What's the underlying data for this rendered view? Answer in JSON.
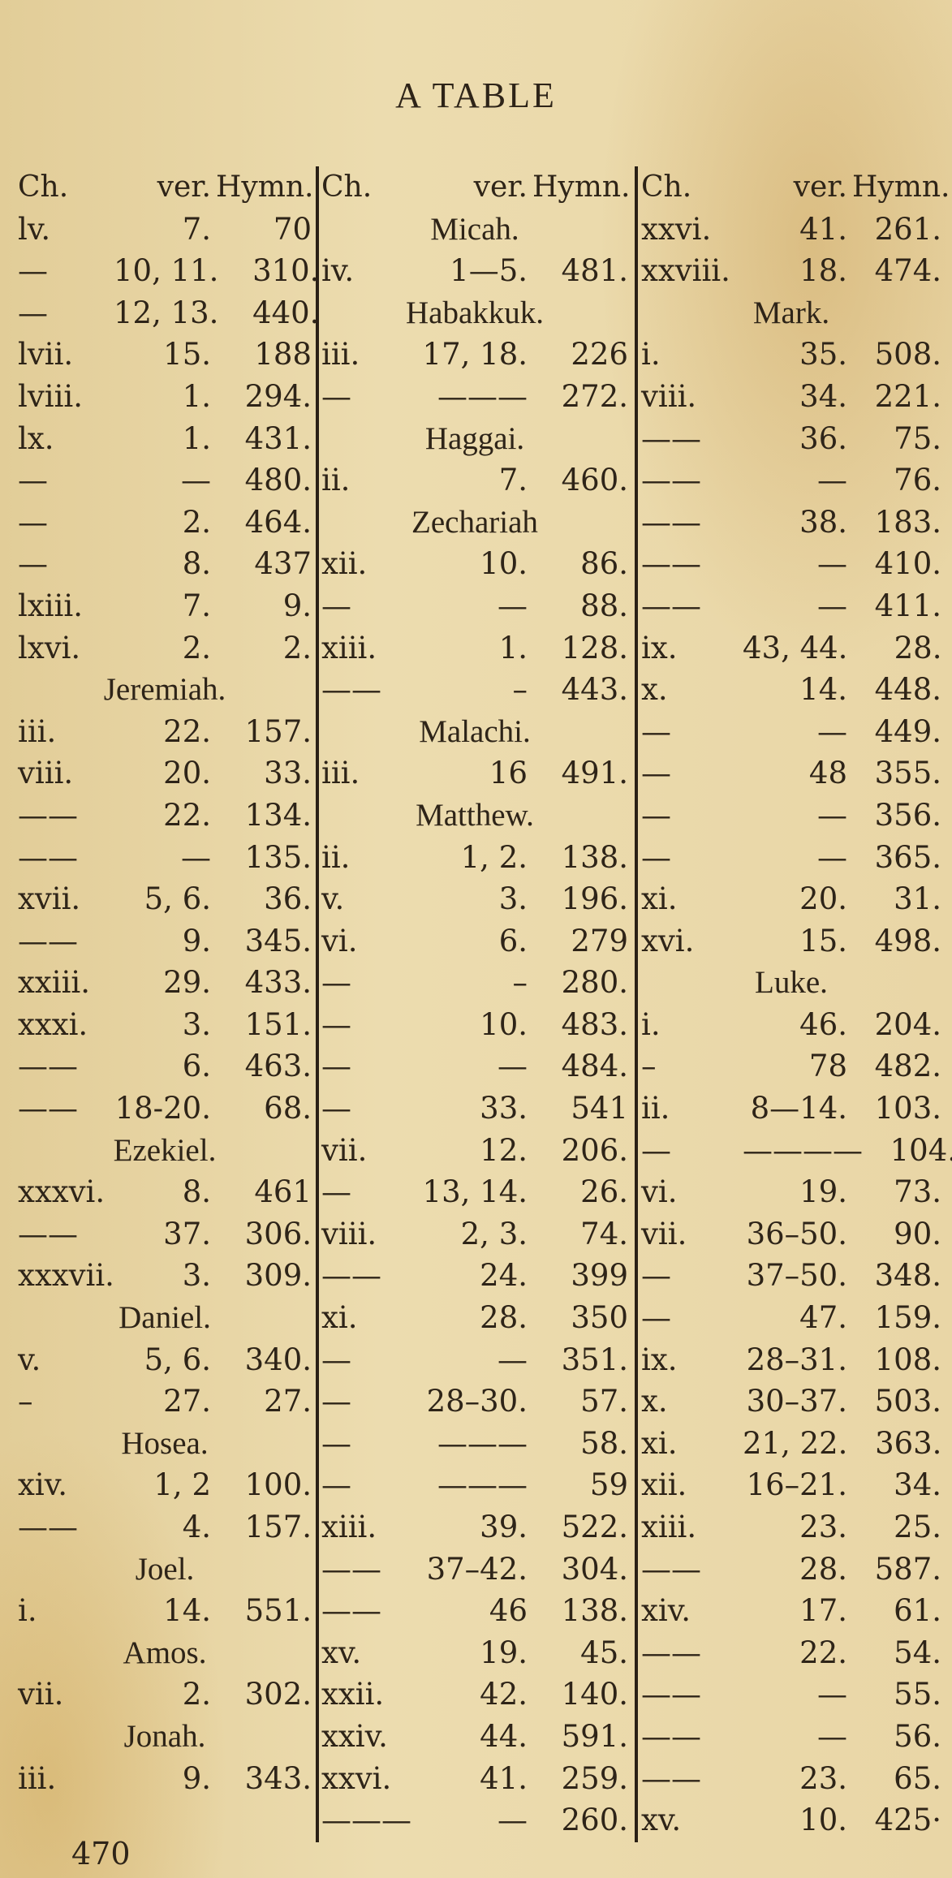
{
  "title": "A TABLE",
  "page_number": "470",
  "header": {
    "ch": "Ch.",
    "ver": "ver.",
    "hymn": "Hymn."
  },
  "columns": [
    {
      "rows": [
        {
          "ch": "lv.",
          "ver": "7.",
          "hymn": "70"
        },
        {
          "ch": "—",
          "ver": "10, 11.",
          "hymn": "310."
        },
        {
          "ch": "—",
          "ver": "12, 13.",
          "hymn": "440."
        },
        {
          "ch": "lvii.",
          "ver": "15.",
          "hymn": "188"
        },
        {
          "ch": "lviii.",
          "ver": "1.",
          "hymn": "294."
        },
        {
          "ch": "lx.",
          "ver": "1.",
          "hymn": "431."
        },
        {
          "ch": "—",
          "ver": "—",
          "hymn": "480."
        },
        {
          "ch": "—",
          "ver": "2.",
          "hymn": "464."
        },
        {
          "ch": "—",
          "ver": "8.",
          "hymn": "437"
        },
        {
          "ch": "lxiii.",
          "ver": "7.",
          "hymn": "9."
        },
        {
          "ch": "lxvi.",
          "ver": "2.",
          "hymn": "2."
        },
        {
          "heading": "Jeremiah."
        },
        {
          "ch": "iii.",
          "ver": "22.",
          "hymn": "157."
        },
        {
          "ch": "viii.",
          "ver": "20.",
          "hymn": "33."
        },
        {
          "ch": "——",
          "ver": "22.",
          "hymn": "134."
        },
        {
          "ch": "——",
          "ver": "—",
          "hymn": "135."
        },
        {
          "ch": "xvii.",
          "ver": "5, 6.",
          "hymn": "36."
        },
        {
          "ch": "——",
          "ver": "9.",
          "hymn": "345."
        },
        {
          "ch": "xxiii.",
          "ver": "29.",
          "hymn": "433."
        },
        {
          "ch": "xxxi.",
          "ver": "3.",
          "hymn": "151."
        },
        {
          "ch": "——",
          "ver": "6.",
          "hymn": "463."
        },
        {
          "ch": "——",
          "ver": "18-20.",
          "hymn": "68."
        },
        {
          "heading": "Ezekiel."
        },
        {
          "ch": "xxxvi.",
          "ver": "8.",
          "hymn": "461"
        },
        {
          "ch": "——",
          "ver": "37.",
          "hymn": "306."
        },
        {
          "ch": "xxxvii.",
          "ver": "3.",
          "hymn": "309."
        },
        {
          "heading": "Daniel."
        },
        {
          "ch": "v.",
          "ver": "5, 6.",
          "hymn": "340."
        },
        {
          "ch": "–",
          "ver": "27.",
          "hymn": "27."
        },
        {
          "heading": "Hosea."
        },
        {
          "ch": "xiv.",
          "ver": "1, 2",
          "hymn": "100."
        },
        {
          "ch": "——",
          "ver": "4.",
          "hymn": "157."
        },
        {
          "heading": "Joel."
        },
        {
          "ch": "i.",
          "ver": "14.",
          "hymn": "551."
        },
        {
          "heading": "Amos."
        },
        {
          "ch": "vii.",
          "ver": "2.",
          "hymn": "302."
        },
        {
          "heading": "Jonah."
        },
        {
          "ch": "iii.",
          "ver": "9.",
          "hymn": "343."
        }
      ]
    },
    {
      "rows": [
        {
          "heading": "Micah."
        },
        {
          "ch": "iv.",
          "ver": "1—5.",
          "hymn": "481."
        },
        {
          "heading": "Habakkuk."
        },
        {
          "ch": "iii.",
          "ver": "17, 18.",
          "hymn": "226"
        },
        {
          "ch": "—",
          "ver": "———",
          "hymn": "272."
        },
        {
          "heading": "Haggai."
        },
        {
          "ch": "ii.",
          "ver": "7.",
          "hymn": "460."
        },
        {
          "heading": "Zechariah"
        },
        {
          "ch": "xii.",
          "ver": "10.",
          "hymn": "86."
        },
        {
          "ch": "—",
          "ver": "—",
          "hymn": "88."
        },
        {
          "ch": "xiii.",
          "ver": "1.",
          "hymn": "128."
        },
        {
          "ch": "——",
          "ver": "–",
          "hymn": "443."
        },
        {
          "heading": "Malachi."
        },
        {
          "ch": "iii.",
          "ver": "16",
          "hymn": "491."
        },
        {
          "heading": "Matthew."
        },
        {
          "ch": "ii.",
          "ver": "1, 2.",
          "hymn": "138."
        },
        {
          "ch": "v.",
          "ver": "3.",
          "hymn": "196."
        },
        {
          "ch": "vi.",
          "ver": "6.",
          "hymn": "279"
        },
        {
          "ch": "—",
          "ver": "–",
          "hymn": "280."
        },
        {
          "ch": "—",
          "ver": "10.",
          "hymn": "483."
        },
        {
          "ch": "—",
          "ver": "—",
          "hymn": "484."
        },
        {
          "ch": "—",
          "ver": "33.",
          "hymn": "541"
        },
        {
          "ch": "vii.",
          "ver": "12.",
          "hymn": "206."
        },
        {
          "ch": "—",
          "ver": "13, 14.",
          "hymn": "26."
        },
        {
          "ch": "viii.",
          "ver": "2, 3.",
          "hymn": "74."
        },
        {
          "ch": "——",
          "ver": "24.",
          "hymn": "399"
        },
        {
          "ch": "xi.",
          "ver": "28.",
          "hymn": "350"
        },
        {
          "ch": "—",
          "ver": "—",
          "hymn": "351."
        },
        {
          "ch": "—",
          "ver": "28–30.",
          "hymn": "57."
        },
        {
          "ch": "—",
          "ver": "———",
          "hymn": "58."
        },
        {
          "ch": "—",
          "ver": "———",
          "hymn": "59"
        },
        {
          "ch": "xiii.",
          "ver": "39.",
          "hymn": "522."
        },
        {
          "ch": "——",
          "ver": "37–42.",
          "hymn": "304."
        },
        {
          "ch": "——",
          "ver": "46",
          "hymn": "138."
        },
        {
          "ch": "xv.",
          "ver": "19.",
          "hymn": "45."
        },
        {
          "ch": "xxii.",
          "ver": "42.",
          "hymn": "140."
        },
        {
          "ch": "xxiv.",
          "ver": "44.",
          "hymn": "591."
        },
        {
          "ch": "xxvi.",
          "ver": "41.",
          "hymn": "259."
        },
        {
          "ch": "———",
          "ver": "—",
          "hymn": "260."
        }
      ]
    },
    {
      "rows": [
        {
          "ch": "xxvi.",
          "ver": "41.",
          "hymn": "261."
        },
        {
          "ch": "xxviii.",
          "ver": "18.",
          "hymn": "474."
        },
        {
          "heading": "Mark."
        },
        {
          "ch": "i.",
          "ver": "35.",
          "hymn": "508."
        },
        {
          "ch": "viii.",
          "ver": "34.",
          "hymn": "221."
        },
        {
          "ch": "——",
          "ver": "36.",
          "hymn": "75."
        },
        {
          "ch": "——",
          "ver": "—",
          "hymn": "76."
        },
        {
          "ch": "——",
          "ver": "38.",
          "hymn": "183."
        },
        {
          "ch": "——",
          "ver": "—",
          "hymn": "410."
        },
        {
          "ch": "——",
          "ver": "—",
          "hymn": "411."
        },
        {
          "ch": "ix.",
          "ver": "43, 44.",
          "hymn": "28."
        },
        {
          "ch": "x.",
          "ver": "14.",
          "hymn": "448."
        },
        {
          "ch": "—",
          "ver": "—",
          "hymn": "449."
        },
        {
          "ch": "—",
          "ver": "48",
          "hymn": "355."
        },
        {
          "ch": "—",
          "ver": "—",
          "hymn": "356."
        },
        {
          "ch": "—",
          "ver": "—",
          "hymn": "365."
        },
        {
          "ch": "xi.",
          "ver": "20.",
          "hymn": "31."
        },
        {
          "ch": "xvi.",
          "ver": "15.",
          "hymn": "498."
        },
        {
          "heading": "Luke."
        },
        {
          "ch": "i.",
          "ver": "46.",
          "hymn": "204."
        },
        {
          "ch": "–",
          "ver": "78",
          "hymn": "482."
        },
        {
          "ch": "ii.",
          "ver": "8—14.",
          "hymn": "103."
        },
        {
          "ch": "—",
          "ver": "————",
          "hymn": "104."
        },
        {
          "ch": "vi.",
          "ver": "19.",
          "hymn": "73."
        },
        {
          "ch": "vii.",
          "ver": "36–50.",
          "hymn": "90."
        },
        {
          "ch": "—",
          "ver": "37–50.",
          "hymn": "348."
        },
        {
          "ch": "—",
          "ver": "47.",
          "hymn": "159."
        },
        {
          "ch": "ix.",
          "ver": "28–31.",
          "hymn": "108."
        },
        {
          "ch": "x.",
          "ver": "30–37.",
          "hymn": "503."
        },
        {
          "ch": "xi.",
          "ver": "21, 22.",
          "hymn": "363."
        },
        {
          "ch": "xii.",
          "ver": "16–21.",
          "hymn": "34."
        },
        {
          "ch": "xiii.",
          "ver": "23.",
          "hymn": "25."
        },
        {
          "ch": "——",
          "ver": "28.",
          "hymn": "587."
        },
        {
          "ch": "xiv.",
          "ver": "17.",
          "hymn": "61."
        },
        {
          "ch": "——",
          "ver": "22.",
          "hymn": "54."
        },
        {
          "ch": "——",
          "ver": "—",
          "hymn": "55."
        },
        {
          "ch": "——",
          "ver": "—",
          "hymn": "56."
        },
        {
          "ch": "——",
          "ver": "23.",
          "hymn": "65."
        },
        {
          "ch": "xv.",
          "ver": "10.",
          "hymn": "425·"
        }
      ]
    }
  ]
}
